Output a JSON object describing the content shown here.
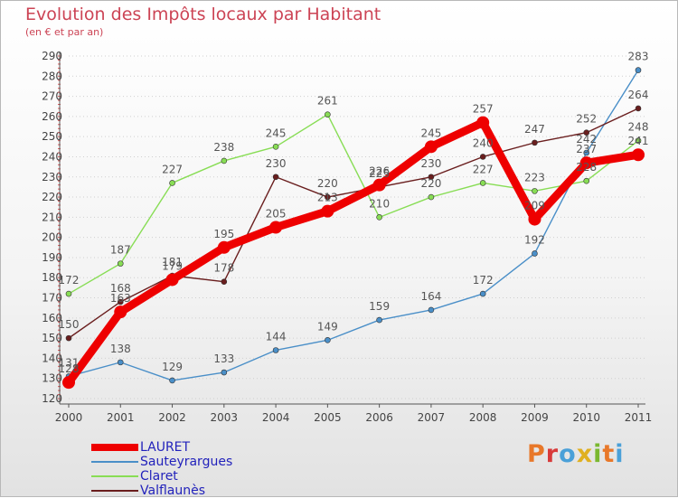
{
  "title": "Evolution des Impôts locaux par Habitant",
  "subtitle": "(en € et par an)",
  "logo_text": "Proxiti",
  "logo_colors": [
    "#e8782a",
    "#d83a3a",
    "#4aa0d8",
    "#e0b020",
    "#7ab830",
    "#e8782a",
    "#4aa0d8"
  ],
  "chart_data": {
    "type": "line",
    "categories": [
      "2000",
      "2001",
      "2002",
      "2003",
      "2004",
      "2005",
      "2006",
      "2007",
      "2008",
      "2009",
      "2010",
      "2011"
    ],
    "ylim": [
      120,
      290
    ],
    "yticks": [
      120,
      130,
      140,
      150,
      160,
      170,
      180,
      190,
      200,
      210,
      220,
      230,
      240,
      250,
      260,
      270,
      280,
      290
    ],
    "grid": "horizontal dotted",
    "legend_position": "bottom-left",
    "series": [
      {
        "name": "LAURET",
        "color": "#ee0000",
        "emphasis": true,
        "values": [
          128,
          163,
          179,
          195,
          205,
          213,
          226,
          245,
          257,
          209,
          237,
          241
        ],
        "labels": [
          "128",
          "163",
          "179",
          "195",
          "205",
          "213",
          "226",
          "245",
          "257",
          "209",
          "237",
          "241"
        ]
      },
      {
        "name": "Sauteyrargues",
        "color": "#4a8fc8",
        "values": [
          131,
          138,
          129,
          133,
          144,
          149,
          159,
          164,
          172,
          192,
          242,
          283
        ],
        "labels": [
          "131",
          "138",
          "129",
          "133",
          "144",
          "149",
          "159",
          "164",
          "172",
          "192",
          "242",
          "283"
        ]
      },
      {
        "name": "Claret",
        "color": "#88dd55",
        "values": [
          172,
          187,
          227,
          238,
          245,
          261,
          210,
          220,
          227,
          223,
          228,
          248
        ],
        "labels": [
          "172",
          "187",
          "227",
          "238",
          "245",
          "261",
          "210",
          "220",
          "227",
          "223",
          "228",
          "248"
        ]
      },
      {
        "name": "Valflaunès",
        "color": "#6a1e1e",
        "values": [
          150,
          168,
          181,
          178,
          230,
          220,
          225,
          230,
          240,
          247,
          252,
          264
        ],
        "labels": [
          "150",
          "168",
          "181",
          "178",
          "230",
          "220",
          "225",
          "230",
          "240",
          "247",
          "252",
          "264"
        ]
      }
    ]
  }
}
